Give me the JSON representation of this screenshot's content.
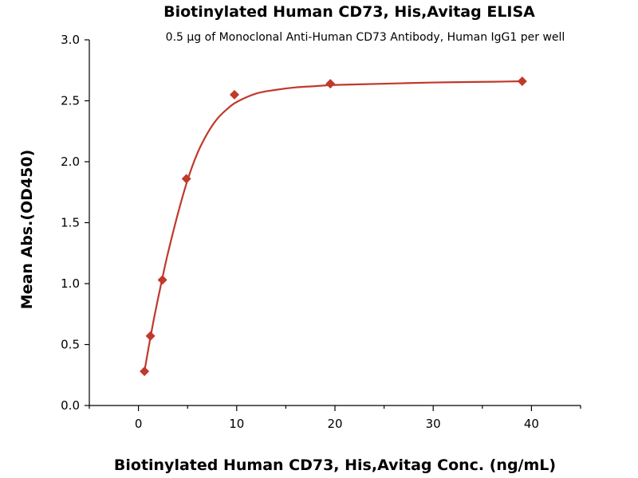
{
  "chart_data": {
    "type": "scatter",
    "title": "Biotinylated Human CD73, His,Avitag ELISA",
    "subtitle": "0.5 µg of Monoclonal Anti-Human CD73 Antibody, Human IgG1 per well",
    "xlabel": "Biotinylated Human CD73, His,Avitag Conc. (ng/mL)",
    "ylabel": "Mean Abs.(OD450)",
    "xlim": [
      -5,
      45
    ],
    "ylim": [
      0,
      3.0
    ],
    "x_ticks": [
      0,
      10,
      20,
      30,
      40
    ],
    "y_ticks": [
      0.0,
      0.5,
      1.0,
      1.5,
      2.0,
      2.5,
      3.0
    ],
    "x_tick_labels": [
      "0",
      "10",
      "20",
      "30",
      "40"
    ],
    "y_tick_labels": [
      "0.0",
      "0.5",
      "1.0",
      "1.5",
      "2.0",
      "2.5",
      "3.0"
    ],
    "grid": false,
    "color": "#c0392b",
    "marker": "diamond",
    "series": [
      {
        "x": [
          0.61,
          1.22,
          2.44,
          4.88,
          9.77,
          19.53,
          39.06
        ],
        "y": [
          0.28,
          0.57,
          1.03,
          1.86,
          2.55,
          2.64,
          2.66
        ]
      }
    ],
    "fit_curve": {
      "x": [
        0.61,
        1,
        1.5,
        2,
        2.5,
        3,
        4,
        5,
        6,
        7,
        8,
        9,
        10,
        12,
        14,
        16,
        18,
        20,
        25,
        30,
        35,
        39.06
      ],
      "y": [
        0.28,
        0.46,
        0.68,
        0.88,
        1.07,
        1.25,
        1.57,
        1.85,
        2.07,
        2.23,
        2.35,
        2.43,
        2.49,
        2.56,
        2.59,
        2.61,
        2.62,
        2.63,
        2.64,
        2.65,
        2.655,
        2.66
      ]
    }
  }
}
